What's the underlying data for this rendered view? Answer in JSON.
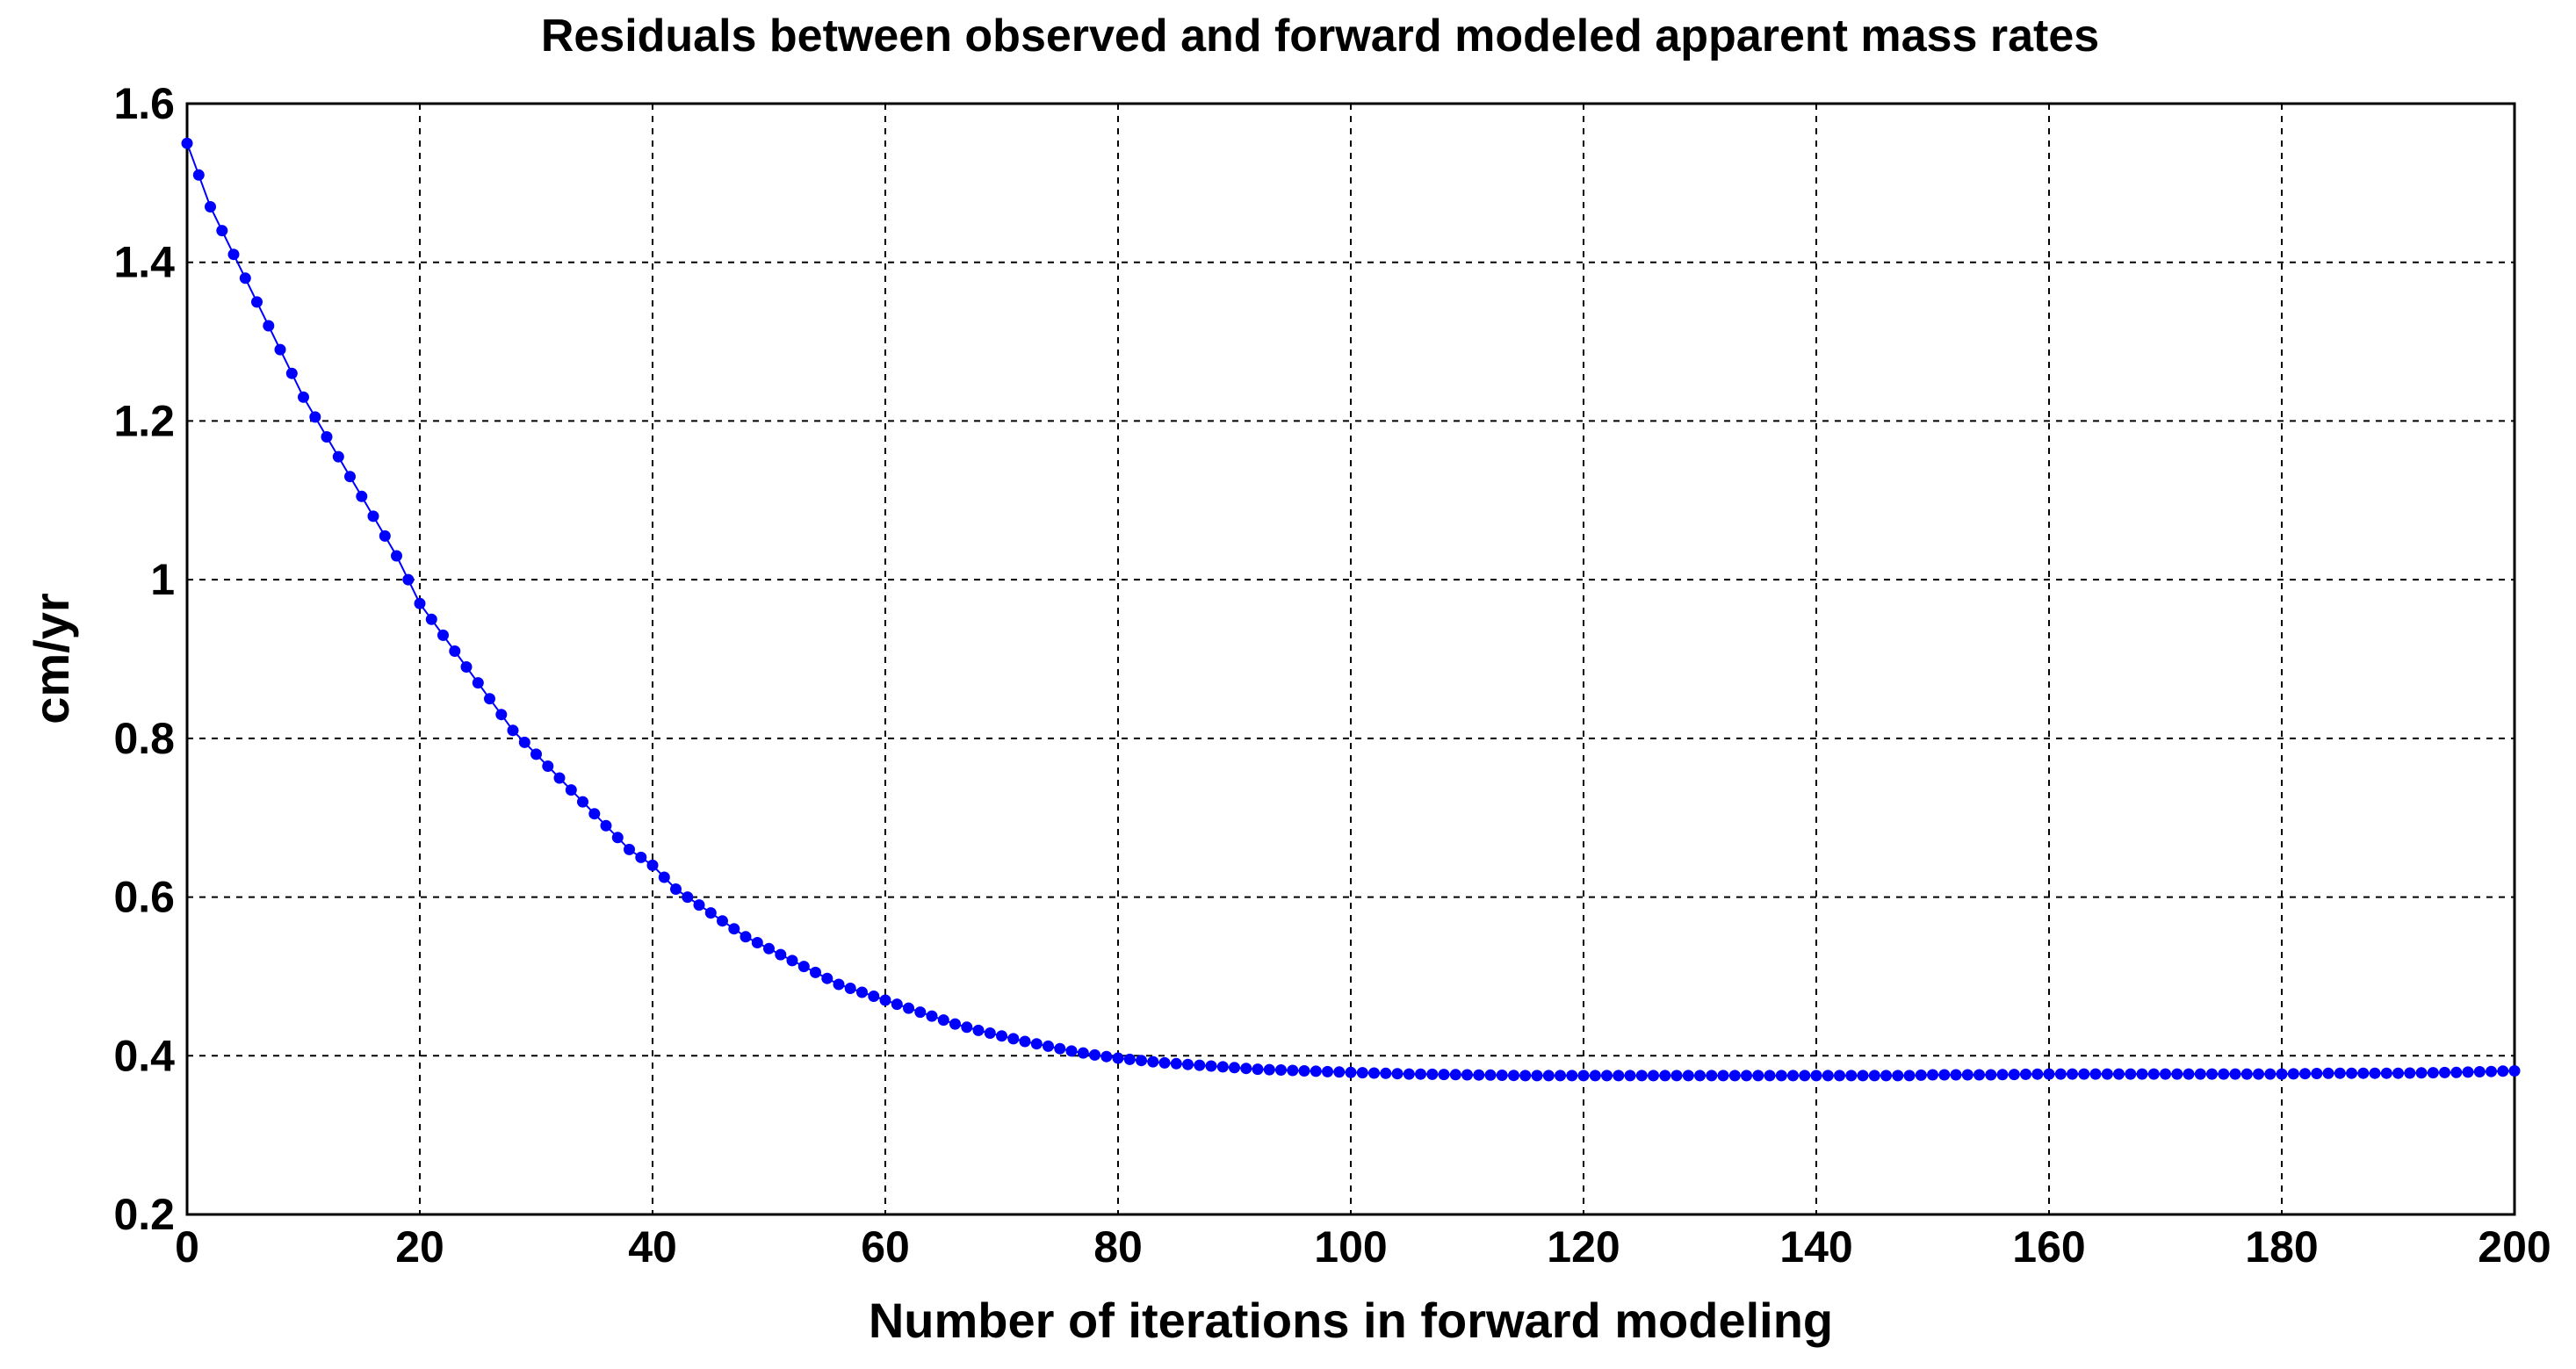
{
  "chart_data": {
    "type": "line",
    "title": "Residuals between observed and forward modeled apparent mass rates",
    "xlabel": "Number of iterations in forward modeling",
    "ylabel": "cm/yr",
    "xlim": [
      0,
      200
    ],
    "ylim": [
      0.2,
      1.6
    ],
    "xticks": [
      0,
      20,
      40,
      60,
      80,
      100,
      120,
      140,
      160,
      180,
      200
    ],
    "xtick_labels": [
      "0",
      "20",
      "40",
      "60",
      "80",
      "100",
      "120",
      "140",
      "160",
      "180",
      "200"
    ],
    "yticks": [
      0.2,
      0.4,
      0.6,
      0.8,
      1.0,
      1.2,
      1.4,
      1.6
    ],
    "ytick_labels": [
      "0.2",
      "0.4",
      "0.6",
      "0.8",
      "1",
      "1.2",
      "1.4",
      "1.6"
    ],
    "grid": true,
    "line_color": "#0000ff",
    "marker": "filled-circle",
    "series": [
      {
        "x": [
          0,
          2,
          4,
          6,
          8,
          10,
          12,
          14,
          16,
          18,
          20,
          22,
          24,
          26,
          28,
          30,
          32,
          34,
          36,
          38,
          40,
          42,
          44,
          46,
          48,
          50,
          52,
          54,
          56,
          58,
          60,
          62,
          64,
          66,
          68,
          70,
          72,
          74,
          76,
          78,
          80,
          82,
          84,
          86,
          88,
          90,
          92,
          94,
          96,
          98,
          100,
          105,
          110,
          115,
          120,
          125,
          130,
          135,
          140,
          145,
          148,
          150,
          155,
          160,
          165,
          170,
          175,
          180,
          185,
          190,
          195,
          200
        ],
        "y": [
          1.55,
          1.47,
          1.41,
          1.35,
          1.29,
          1.23,
          1.18,
          1.13,
          1.08,
          1.03,
          0.97,
          0.93,
          0.89,
          0.85,
          0.81,
          0.78,
          0.75,
          0.72,
          0.69,
          0.66,
          0.64,
          0.61,
          0.59,
          0.57,
          0.55,
          0.535,
          0.52,
          0.505,
          0.49,
          0.48,
          0.47,
          0.46,
          0.45,
          0.44,
          0.432,
          0.425,
          0.418,
          0.412,
          0.406,
          0.401,
          0.397,
          0.394,
          0.391,
          0.389,
          0.387,
          0.385,
          0.383,
          0.382,
          0.381,
          0.38,
          0.379,
          0.377,
          0.376,
          0.375,
          0.375,
          0.375,
          0.375,
          0.375,
          0.375,
          0.375,
          0.375,
          0.376,
          0.376,
          0.377,
          0.377,
          0.377,
          0.377,
          0.377,
          0.378,
          0.378,
          0.379,
          0.381
        ]
      }
    ]
  }
}
